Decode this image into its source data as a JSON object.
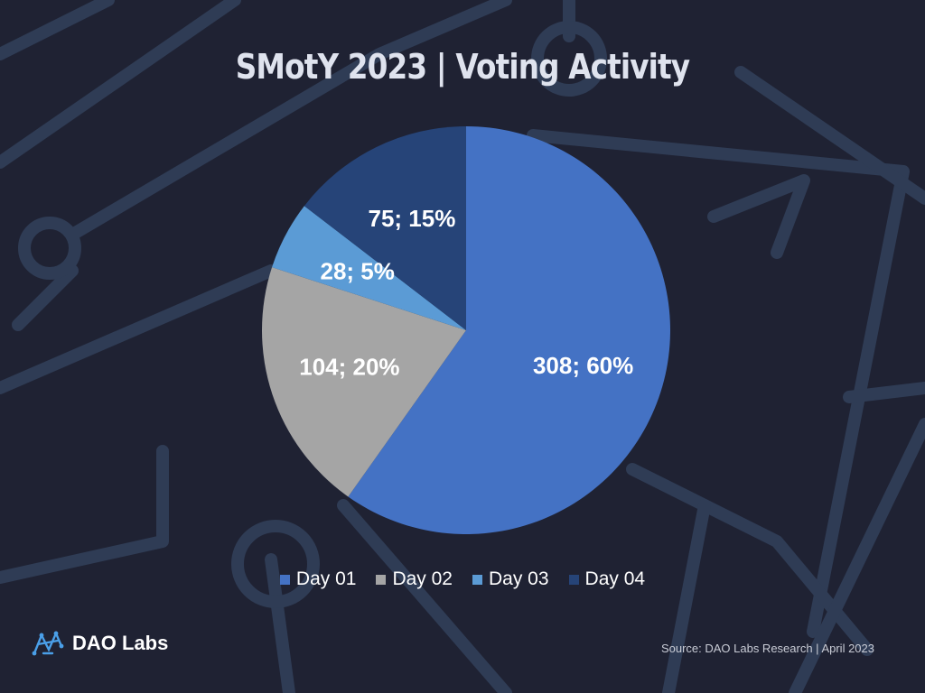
{
  "header": {
    "title": "SMotY 2023 | Voting Activity"
  },
  "chart_data": {
    "type": "pie",
    "title": "SMotY 2023 | Voting Activity",
    "categories": [
      "Day 01",
      "Day 02",
      "Day 03",
      "Day 04"
    ],
    "values": [
      308,
      104,
      28,
      75
    ],
    "percentages": [
      "60%",
      "20%",
      "5%",
      "15%"
    ],
    "data_labels": [
      "308; 60%",
      "104; 20%",
      "28; 5%",
      "75; 15%"
    ],
    "colors": [
      "#4472c4",
      "#a5a5a5",
      "#5b9bd5",
      "#264478"
    ],
    "legend_position": "bottom",
    "start_direction": "top, clockwise"
  },
  "footer": {
    "brand": "DAO Labs",
    "source": "Source: DAO Labs Research | April 2023"
  },
  "icons": {
    "brand_logo": "dao-labs-logo-icon"
  }
}
